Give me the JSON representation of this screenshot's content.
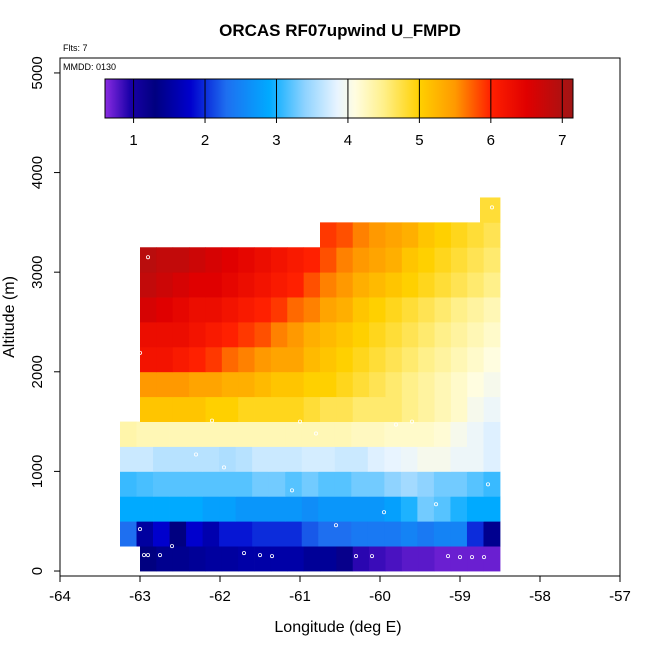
{
  "chart_data": {
    "type": "heatmap",
    "title": "ORCAS RF07upwind U_FMPD",
    "notes": {
      "flights": "Flts: 7",
      "date": "MMDD: 0130"
    },
    "xlabel": "Longitude (deg E)",
    "ylabel": "Altitude (m)",
    "xlim": [
      -64,
      -57
    ],
    "ylim": [
      -50,
      5150
    ],
    "x_ticks": [
      -64,
      -63,
      -62,
      -61,
      -60,
      -59,
      -58,
      -57
    ],
    "y_ticks": [
      0,
      1000,
      2000,
      3000,
      4000,
      5000
    ],
    "colorbar": {
      "range": [
        0.6,
        7.15
      ],
      "ticks": [
        1,
        2,
        3,
        4,
        5,
        6,
        7
      ],
      "stops": [
        {
          "v": 0.6,
          "c": "#8a2be2"
        },
        {
          "v": 0.95,
          "c": "#1a00a8"
        },
        {
          "v": 1.3,
          "c": "#000080"
        },
        {
          "v": 1.8,
          "c": "#0000cd"
        },
        {
          "v": 2.3,
          "c": "#1e6ff0"
        },
        {
          "v": 2.9,
          "c": "#00aaff"
        },
        {
          "v": 3.4,
          "c": "#8fd3ff"
        },
        {
          "v": 3.85,
          "c": "#e8f4ff"
        },
        {
          "v": 4.1,
          "c": "#fffde0"
        },
        {
          "v": 4.5,
          "c": "#fff08a"
        },
        {
          "v": 5.0,
          "c": "#ffd000"
        },
        {
          "v": 5.5,
          "c": "#ff9900"
        },
        {
          "v": 6.0,
          "c": "#ff2000"
        },
        {
          "v": 6.5,
          "c": "#e00000"
        },
        {
          "v": 7.15,
          "c": "#a01515"
        }
      ]
    },
    "rows": [
      {
        "y0": 0,
        "y1": 250,
        "x0": -63.0,
        "x1": -58.5,
        "values": [
          1.3,
          1.4,
          1.4,
          1.45,
          1.5,
          1.5,
          1.55,
          1.55,
          1.55,
          1.55,
          1.45,
          1.45,
          1.2,
          0.9,
          0.85,
          0.8,
          0.75,
          0.75,
          0.7,
          0.7,
          0.7,
          0.7
        ]
      },
      {
        "y0": 250,
        "y1": 500,
        "x0": -63.25,
        "x1": -58.5,
        "values": [
          2.3,
          1.5,
          1.8,
          1.3,
          1.8,
          1.6,
          1.9,
          1.9,
          2.0,
          2.0,
          2.0,
          2.2,
          2.3,
          2.3,
          2.4,
          2.4,
          2.4,
          2.5,
          2.4,
          2.5,
          2.5,
          2.0,
          1.4
        ]
      },
      {
        "y0": 500,
        "y1": 750,
        "x0": -63.25,
        "x1": -58.5,
        "values": [
          2.9,
          2.9,
          2.9,
          2.9,
          2.9,
          2.8,
          2.8,
          2.7,
          2.7,
          2.7,
          2.7,
          2.6,
          2.7,
          2.7,
          2.7,
          2.7,
          2.8,
          3.0,
          3.3,
          3.2,
          3.0,
          2.9,
          2.9
        ]
      },
      {
        "y0": 750,
        "y1": 1000,
        "x0": -63.25,
        "x1": -58.5,
        "values": [
          3.1,
          3.15,
          3.2,
          3.2,
          3.2,
          3.2,
          3.2,
          3.2,
          3.3,
          3.3,
          3.2,
          3.3,
          3.2,
          3.2,
          3.3,
          3.3,
          3.4,
          3.5,
          3.4,
          3.3,
          3.3,
          3.2,
          3.1
        ]
      },
      {
        "y0": 1000,
        "y1": 1250,
        "x0": -63.25,
        "x1": -58.5,
        "values": [
          3.7,
          3.7,
          3.6,
          3.6,
          3.6,
          3.6,
          3.55,
          3.6,
          3.7,
          3.7,
          3.7,
          3.75,
          3.75,
          3.7,
          3.7,
          3.8,
          3.85,
          3.9,
          4.0,
          4.0,
          3.9,
          3.9,
          3.8
        ]
      },
      {
        "y0": 1250,
        "y1": 1500,
        "x0": -63.25,
        "x1": -58.5,
        "values": [
          4.35,
          4.3,
          4.3,
          4.3,
          4.3,
          4.3,
          4.3,
          4.3,
          4.3,
          4.3,
          4.3,
          4.3,
          4.3,
          4.3,
          4.25,
          4.25,
          4.2,
          4.2,
          4.2,
          4.15,
          4.0,
          3.9,
          3.8
        ]
      },
      {
        "y0": 1500,
        "y1": 1750,
        "x0": -63.0,
        "x1": -58.5,
        "values": [
          5.1,
          5.1,
          5.1,
          5.1,
          5.0,
          5.0,
          4.9,
          4.9,
          4.9,
          4.9,
          4.8,
          4.7,
          4.7,
          4.6,
          4.6,
          4.6,
          4.5,
          4.4,
          4.3,
          4.2,
          4.0,
          3.9
        ]
      },
      {
        "y0": 1750,
        "y1": 2000,
        "x0": -63.0,
        "x1": -58.5,
        "values": [
          5.5,
          5.5,
          5.5,
          5.4,
          5.4,
          5.3,
          5.3,
          5.2,
          5.1,
          5.1,
          5.0,
          5.0,
          4.9,
          4.8,
          4.7,
          4.6,
          4.5,
          4.4,
          4.3,
          4.2,
          4.1,
          4.0
        ]
      },
      {
        "y0": 2000,
        "y1": 2250,
        "x0": -63.0,
        "x1": -58.5,
        "values": [
          6.2,
          6.2,
          6.1,
          6.0,
          5.9,
          5.7,
          5.6,
          5.5,
          5.4,
          5.4,
          5.2,
          5.1,
          5.0,
          4.9,
          4.8,
          4.7,
          4.6,
          4.5,
          4.4,
          4.3,
          4.2,
          4.1
        ]
      },
      {
        "y0": 2250,
        "y1": 2500,
        "x0": -63.0,
        "x1": -58.5,
        "values": [
          6.3,
          6.3,
          6.3,
          6.2,
          6.1,
          6.0,
          5.9,
          5.8,
          5.6,
          5.5,
          5.3,
          5.2,
          5.1,
          5.0,
          4.9,
          4.8,
          4.7,
          4.6,
          4.5,
          4.4,
          4.3,
          4.2
        ]
      },
      {
        "y0": 2500,
        "y1": 2750,
        "x0": -63.0,
        "x1": -58.5,
        "values": [
          6.6,
          6.5,
          6.4,
          6.3,
          6.3,
          6.2,
          6.1,
          6.0,
          5.9,
          5.7,
          5.6,
          5.4,
          5.3,
          5.1,
          5.0,
          4.9,
          4.8,
          4.7,
          4.6,
          4.5,
          4.4,
          4.3
        ]
      },
      {
        "y0": 2750,
        "y1": 3000,
        "x0": -63.0,
        "x1": -58.5,
        "values": [
          6.8,
          6.7,
          6.6,
          6.5,
          6.5,
          6.4,
          6.3,
          6.2,
          6.1,
          6.0,
          5.8,
          5.6,
          5.5,
          5.3,
          5.2,
          5.1,
          5.0,
          4.9,
          4.8,
          4.7,
          4.6,
          4.5
        ]
      },
      {
        "y0": 3000,
        "y1": 3250,
        "x0": -63.0,
        "x1": -58.5,
        "values": [
          6.9,
          6.8,
          6.8,
          6.7,
          6.6,
          6.5,
          6.4,
          6.3,
          6.2,
          6.1,
          6.0,
          5.8,
          5.6,
          5.5,
          5.4,
          5.3,
          5.1,
          5.0,
          4.9,
          4.8,
          4.7,
          4.6
        ]
      },
      {
        "y0": 3250,
        "y1": 3500,
        "x0": -60.75,
        "x1": -58.5,
        "values": [
          5.9,
          5.8,
          5.6,
          5.5,
          5.4,
          5.3,
          5.1,
          5.0,
          4.9,
          4.8,
          4.7
        ]
      },
      {
        "y0": 3500,
        "y1": 3750,
        "x0": -58.75,
        "x1": -58.5,
        "values": [
          4.8
        ]
      }
    ],
    "points": [
      {
        "x": -62.95,
        "y": 160
      },
      {
        "x": -62.9,
        "y": 160
      },
      {
        "x": -62.75,
        "y": 160
      },
      {
        "x": -62.6,
        "y": 250
      },
      {
        "x": -61.7,
        "y": 180
      },
      {
        "x": -61.5,
        "y": 160
      },
      {
        "x": -61.35,
        "y": 150
      },
      {
        "x": -60.3,
        "y": 150
      },
      {
        "x": -60.1,
        "y": 150
      },
      {
        "x": -59.15,
        "y": 150
      },
      {
        "x": -59.0,
        "y": 140
      },
      {
        "x": -58.85,
        "y": 140
      },
      {
        "x": -58.7,
        "y": 140
      },
      {
        "x": -63.0,
        "y": 420
      },
      {
        "x": -60.55,
        "y": 460
      },
      {
        "x": -59.95,
        "y": 590
      },
      {
        "x": -59.3,
        "y": 670
      },
      {
        "x": -61.1,
        "y": 810
      },
      {
        "x": -58.65,
        "y": 870
      },
      {
        "x": -61.95,
        "y": 1040
      },
      {
        "x": -62.3,
        "y": 1170
      },
      {
        "x": -60.8,
        "y": 1380
      },
      {
        "x": -62.1,
        "y": 1510
      },
      {
        "x": -61.0,
        "y": 1500
      },
      {
        "x": -59.8,
        "y": 1470
      },
      {
        "x": -59.6,
        "y": 1500
      },
      {
        "x": -63.0,
        "y": 2190
      },
      {
        "x": -62.9,
        "y": 3150
      },
      {
        "x": -58.6,
        "y": 3650
      }
    ]
  }
}
